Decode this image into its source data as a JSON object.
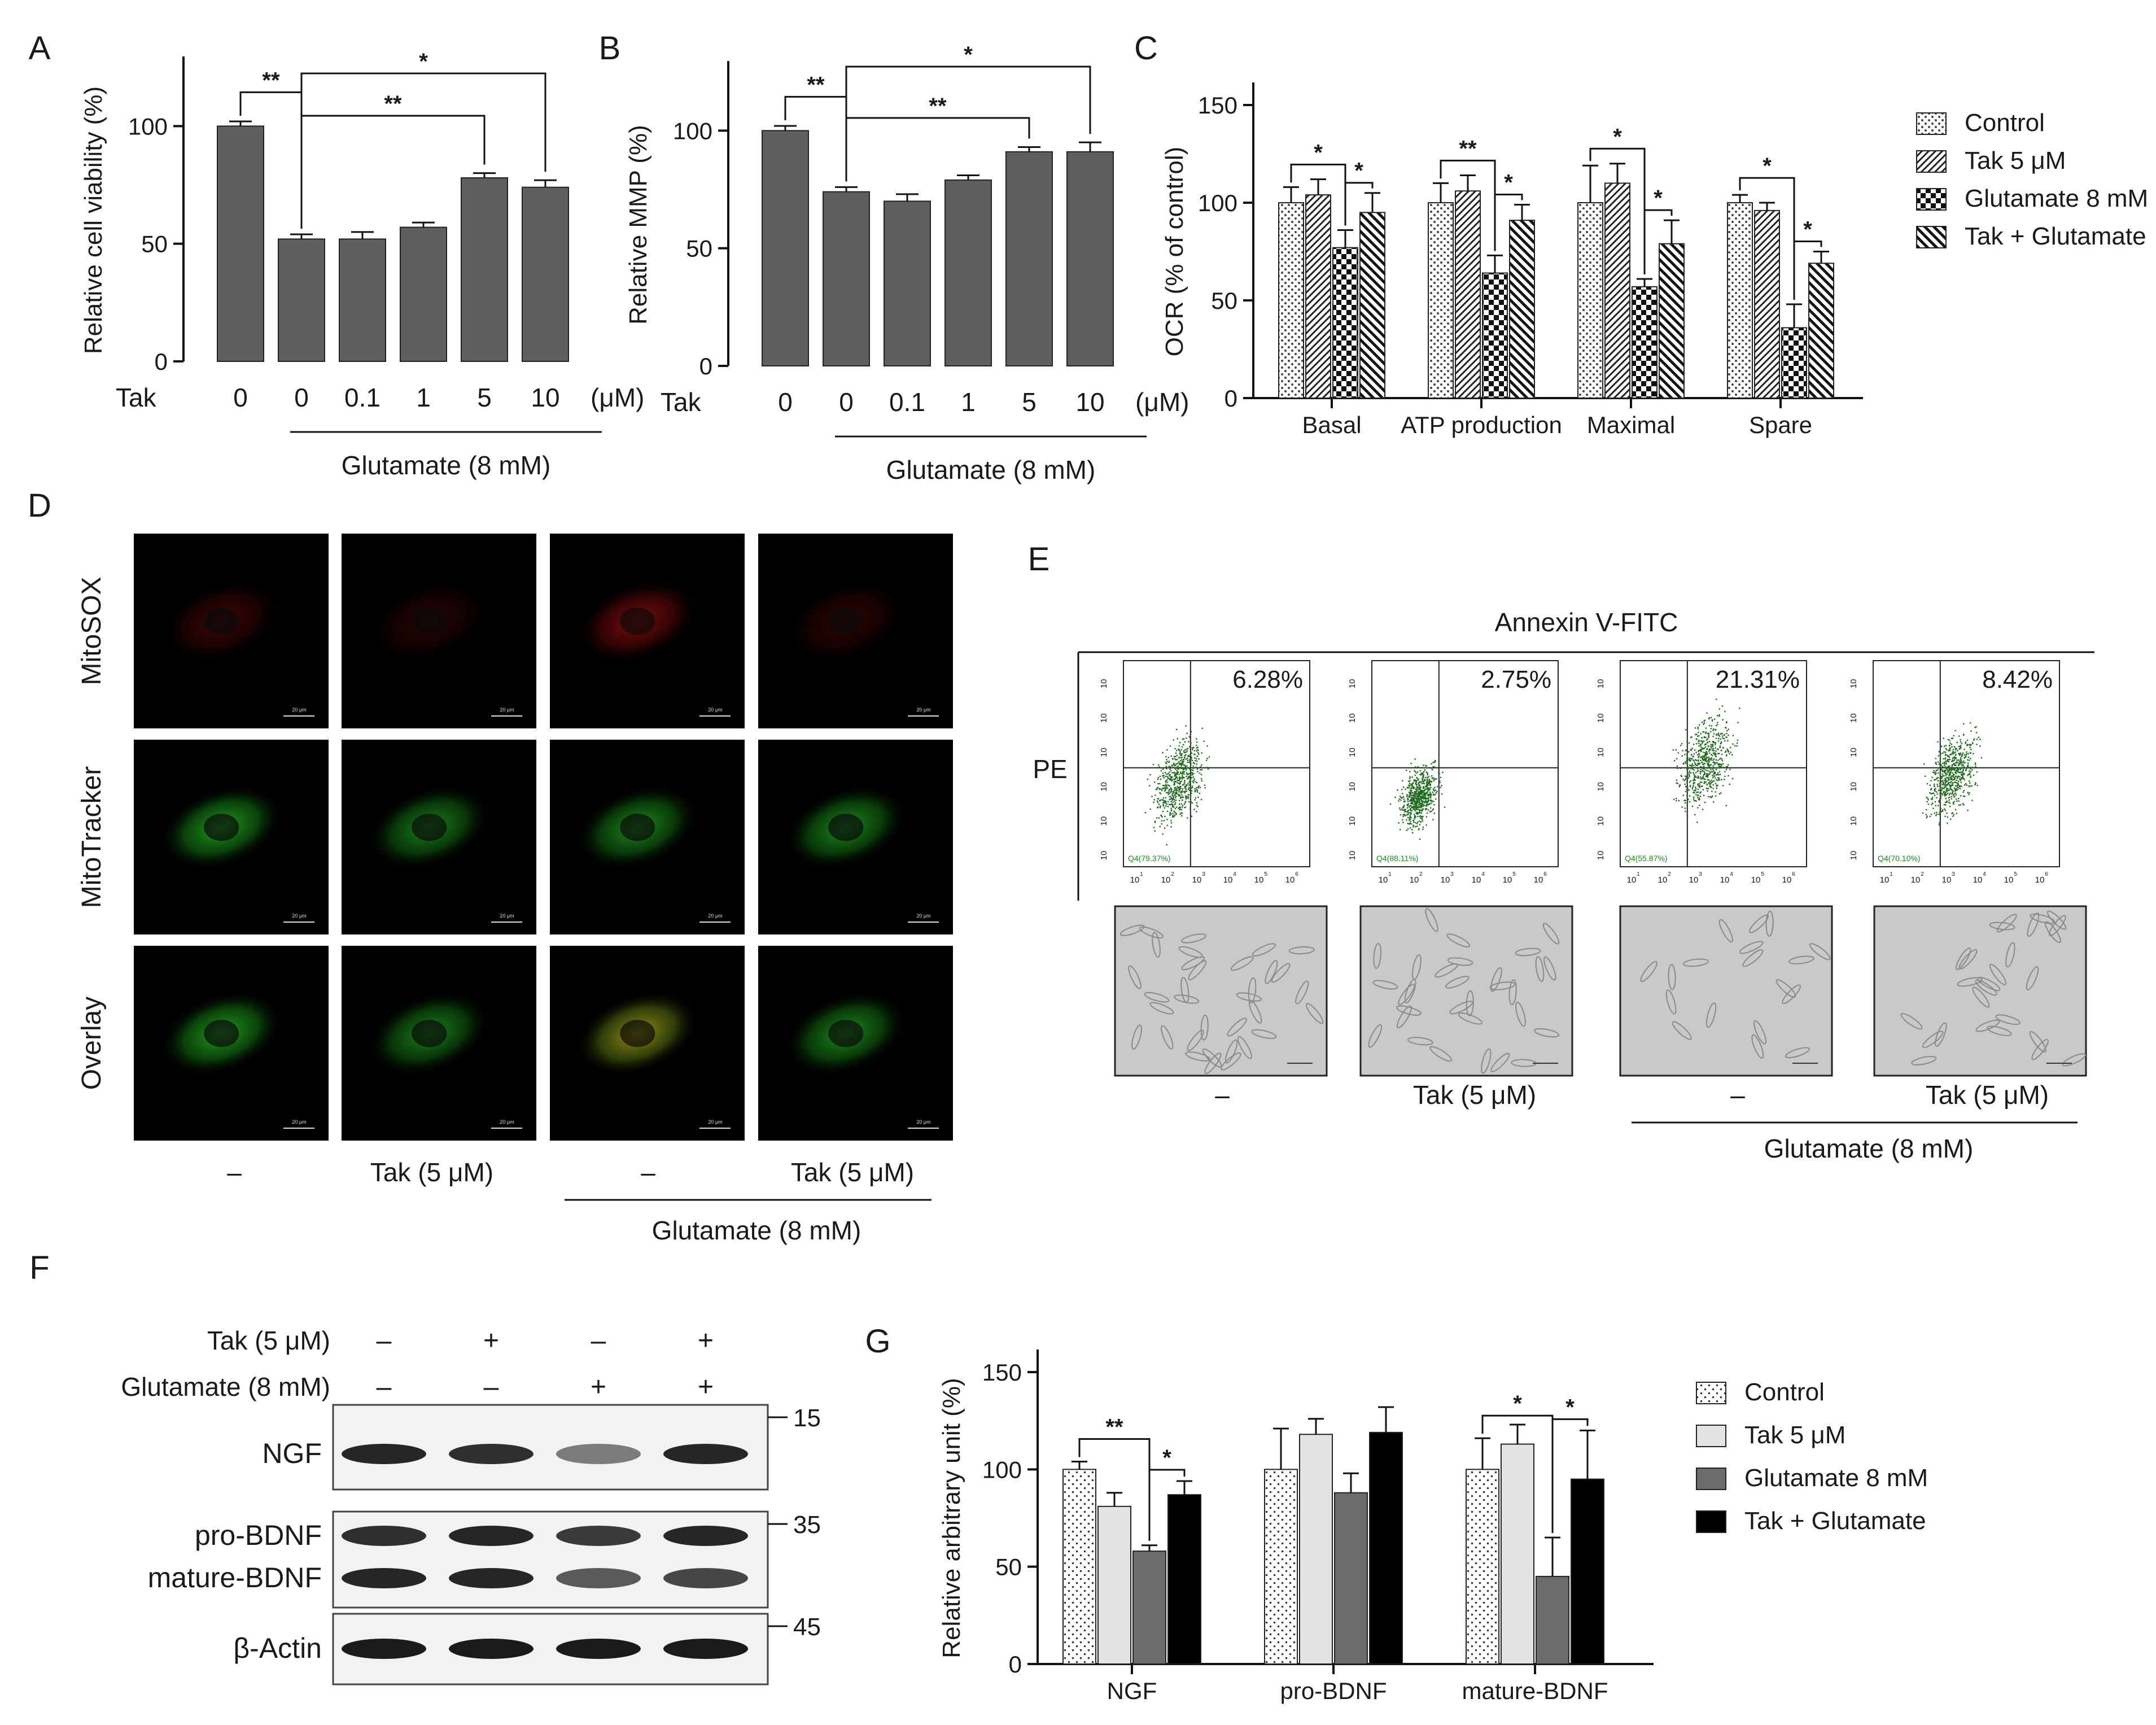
{
  "panel_letters": [
    "A",
    "B",
    "C",
    "D",
    "E",
    "F",
    "G"
  ],
  "colors": {
    "bar_gray": "#5f5f5f",
    "bar_light": "#e3e3e3",
    "bar_dark_gray": "#6b6b6b",
    "bar_black": "#000000",
    "flow_dots": "#1e6b1e",
    "blot_band": "#1a1a1a",
    "cell_red": "#b01010",
    "cell_green": "#2bbf2b"
  },
  "chart_data": [
    {
      "panel": "A",
      "type": "bar",
      "ylabel": "Relative cell viability (%)",
      "ylim": [
        0,
        120
      ],
      "yticks": [
        "0",
        "50",
        "100"
      ],
      "x_row_label": "Tak",
      "categories": [
        "0",
        "0",
        "0.1",
        "1",
        "5",
        "10"
      ],
      "unit_label": "(μM)",
      "values": [
        100,
        52,
        52,
        57,
        78,
        74
      ],
      "errors": [
        2,
        2,
        3,
        2,
        2,
        3
      ],
      "group_label": "Glutamate (8 mM)",
      "significance": [
        "**",
        "*",
        "**"
      ]
    },
    {
      "panel": "B",
      "type": "bar",
      "ylabel": "Relative MMP (%)",
      "ylim": [
        0,
        120
      ],
      "yticks": [
        "0",
        "50",
        "100"
      ],
      "x_row_label": "Tak",
      "categories": [
        "0",
        "0",
        "0.1",
        "1",
        "5",
        "10"
      ],
      "unit_label": "(μM)",
      "values": [
        100,
        74,
        70,
        79,
        91,
        91
      ],
      "errors": [
        2,
        2,
        3,
        2,
        2,
        4
      ],
      "group_label": "Glutamate (8 mM)",
      "significance": [
        "**",
        "*",
        "**"
      ]
    },
    {
      "panel": "C",
      "type": "bar",
      "ylabel": "OCR (% of control)",
      "ylim": [
        0,
        150
      ],
      "yticks": [
        "0",
        "50",
        "100",
        "150"
      ],
      "categories": [
        "Basal",
        "ATP production",
        "Maximal",
        "Spare"
      ],
      "series": [
        {
          "name": "Control",
          "values": [
            100,
            100,
            100,
            100
          ],
          "errors": [
            8,
            10,
            19,
            4
          ]
        },
        {
          "name": "Tak 5 μM",
          "values": [
            104,
            106,
            110,
            96
          ],
          "errors": [
            8,
            8,
            10,
            4
          ]
        },
        {
          "name": "Glutamate 8 mM",
          "values": [
            77,
            64,
            57,
            36
          ],
          "errors": [
            9,
            9,
            4,
            12
          ]
        },
        {
          "name": "Tak + Glutamate",
          "values": [
            95,
            91,
            79,
            69
          ],
          "errors": [
            10,
            8,
            12,
            6
          ]
        }
      ],
      "significance": [
        "*",
        "*",
        "**",
        "*",
        "*",
        "*",
        "*",
        "*"
      ]
    },
    {
      "panel": "G",
      "type": "bar",
      "ylabel": "Relative arbitrary unit (%)",
      "ylim": [
        0,
        150
      ],
      "yticks": [
        "0",
        "50",
        "100",
        "150"
      ],
      "categories": [
        "NGF",
        "pro-BDNF",
        "mature-BDNF"
      ],
      "series": [
        {
          "name": "Control",
          "values": [
            100,
            100,
            100
          ],
          "errors": [
            4,
            21,
            16
          ]
        },
        {
          "name": "Tak 5 μM",
          "values": [
            81,
            118,
            113
          ],
          "errors": [
            7,
            8,
            10
          ]
        },
        {
          "name": "Glutamate 8 mM",
          "values": [
            58,
            88,
            45
          ],
          "errors": [
            3,
            10,
            20
          ]
        },
        {
          "name": "Tak + Glutamate",
          "values": [
            87,
            119,
            95
          ],
          "errors": [
            7,
            13,
            25
          ]
        }
      ],
      "significance": [
        "**",
        "*",
        "*",
        "*"
      ]
    }
  ],
  "panel_D": {
    "row_labels": [
      "MitoSOX",
      "MitoTracker",
      "Overlay"
    ],
    "scale_bar": "20 μm",
    "col_labels": [
      "–",
      "Tak (5 μM)",
      "–",
      "Tak (5 μM)"
    ],
    "group_label": "Glutamate (8 mM)"
  },
  "panel_E": {
    "title": "Annexin V-FITC",
    "y_label": "PE",
    "upper_right_pct": [
      "6.28%",
      "2.75%",
      "21.31%",
      "8.42%"
    ],
    "lower_left_pct": [
      "Q4(79.37%)",
      "Q4(88.11%)",
      "Q4(55.87%)",
      "Q4(70.10%)"
    ],
    "axis_ticks": [
      "10",
      "10",
      "10",
      "10",
      "10",
      "10"
    ],
    "axis_exponents": [
      "1",
      "2",
      "3",
      "4",
      "5",
      "6"
    ],
    "col_labels": [
      "–",
      "Tak (5 μM)",
      "–",
      "Tak (5 μM)"
    ],
    "group_label": "Glutamate (8 mM)"
  },
  "panel_F": {
    "treatment_rows": [
      {
        "label": "Tak (5 μM)",
        "marks": [
          "–",
          "+",
          "–",
          "+"
        ]
      },
      {
        "label": "Glutamate (8 mM)",
        "marks": [
          "–",
          "–",
          "+",
          "+"
        ]
      }
    ],
    "band_labels": [
      "NGF",
      "pro-BDNF",
      "mature-BDNF",
      "β-Actin"
    ],
    "mw_markers": [
      "15",
      "35",
      "45"
    ],
    "band_intensity": {
      "NGF": [
        0.95,
        0.9,
        0.55,
        0.95
      ],
      "pro-BDNF": [
        0.9,
        0.95,
        0.85,
        0.95
      ],
      "mature-BDNF": [
        0.95,
        0.95,
        0.7,
        0.8
      ],
      "β-Actin": [
        1,
        1,
        1,
        1
      ]
    }
  }
}
